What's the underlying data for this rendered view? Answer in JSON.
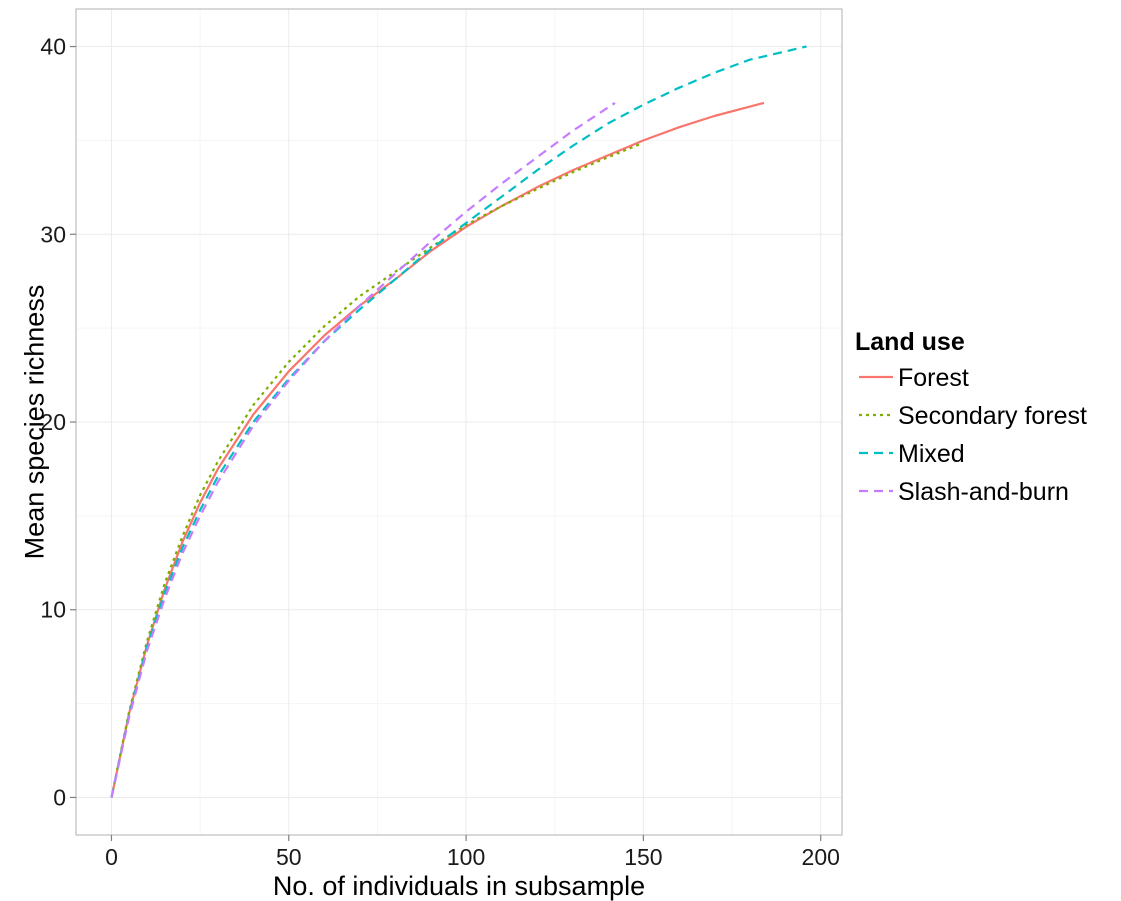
{
  "chart_data": {
    "type": "line",
    "title": "",
    "xlabel": "No. of individuals in subsample",
    "ylabel": "Mean species richness",
    "xlim": [
      -10,
      206
    ],
    "ylim": [
      -2,
      42
    ],
    "x_ticks": [
      0,
      50,
      100,
      150,
      200
    ],
    "y_ticks": [
      0,
      10,
      20,
      30,
      40
    ],
    "x_tick_labels": [
      "0",
      "50",
      "100",
      "150",
      "200"
    ],
    "y_tick_labels": [
      "0",
      "10",
      "20",
      "30",
      "40"
    ],
    "grid": true,
    "legend": {
      "title": "Land use",
      "placement": "right"
    },
    "series": [
      {
        "name": "Forest",
        "color": "#F8766D",
        "dash": "solid",
        "x": [
          0,
          5,
          10,
          15,
          20,
          25,
          30,
          40,
          50,
          60,
          70,
          80,
          90,
          100,
          110,
          120,
          130,
          140,
          150,
          160,
          170,
          184
        ],
        "y": [
          0,
          4.5,
          8.1,
          11.1,
          13.6,
          15.7,
          17.5,
          20.4,
          22.7,
          24.6,
          26.2,
          27.6,
          29.1,
          30.4,
          31.5,
          32.5,
          33.4,
          34.2,
          35.0,
          35.7,
          36.3,
          37.0
        ]
      },
      {
        "name": "Secondary forest",
        "color": "#7CAE00",
        "dash": "dotted",
        "x": [
          0,
          5,
          10,
          15,
          20,
          25,
          30,
          40,
          50,
          60,
          70,
          80,
          90,
          100,
          110,
          120,
          130,
          140,
          149
        ],
        "y": [
          0,
          4.6,
          8.3,
          11.4,
          13.9,
          16.1,
          17.9,
          20.9,
          23.2,
          25.1,
          26.7,
          28.0,
          29.3,
          30.5,
          31.5,
          32.4,
          33.3,
          34.1,
          34.8
        ]
      },
      {
        "name": "Mixed",
        "color": "#00BFC4",
        "dash": "dashed",
        "x": [
          0,
          5,
          10,
          15,
          20,
          25,
          30,
          40,
          50,
          60,
          70,
          80,
          90,
          100,
          110,
          120,
          130,
          140,
          150,
          160,
          170,
          180,
          196
        ],
        "y": [
          0,
          4.4,
          8.0,
          10.9,
          13.3,
          15.3,
          17.1,
          20.0,
          22.3,
          24.3,
          26.0,
          27.6,
          29.2,
          30.6,
          32.0,
          33.4,
          34.7,
          35.9,
          36.9,
          37.8,
          38.6,
          39.3,
          40.0
        ]
      },
      {
        "name": "Slash-and-burn",
        "color": "#C77CFF",
        "dash": "dashed",
        "x": [
          0,
          5,
          10,
          15,
          20,
          25,
          30,
          40,
          50,
          60,
          70,
          80,
          90,
          100,
          110,
          120,
          130,
          142
        ],
        "y": [
          0,
          4.3,
          7.8,
          10.6,
          13.0,
          15.0,
          16.8,
          19.8,
          22.2,
          24.3,
          26.2,
          27.9,
          29.6,
          31.2,
          32.7,
          34.1,
          35.5,
          37.0
        ]
      }
    ]
  }
}
